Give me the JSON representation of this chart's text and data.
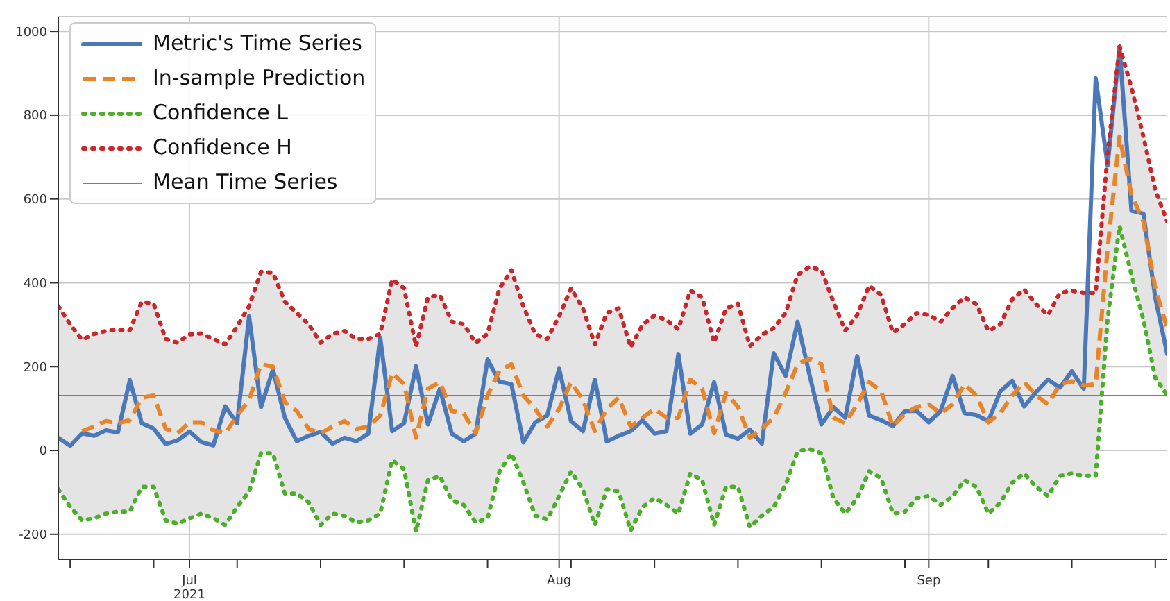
{
  "chart_data": {
    "type": "line",
    "x": [
      "2021-06-20",
      "2021-06-21",
      "2021-06-22",
      "2021-06-23",
      "2021-06-24",
      "2021-06-25",
      "2021-06-26",
      "2021-06-27",
      "2021-06-28",
      "2021-06-29",
      "2021-06-30",
      "2021-07-01",
      "2021-07-02",
      "2021-07-03",
      "2021-07-04",
      "2021-07-05",
      "2021-07-06",
      "2021-07-07",
      "2021-07-08",
      "2021-07-09",
      "2021-07-10",
      "2021-07-11",
      "2021-07-12",
      "2021-07-13",
      "2021-07-14",
      "2021-07-15",
      "2021-07-16",
      "2021-07-17",
      "2021-07-18",
      "2021-07-19",
      "2021-07-20",
      "2021-07-21",
      "2021-07-22",
      "2021-07-23",
      "2021-07-24",
      "2021-07-25",
      "2021-07-26",
      "2021-07-27",
      "2021-07-28",
      "2021-07-29",
      "2021-07-30",
      "2021-07-31",
      "2021-08-01",
      "2021-08-02",
      "2021-08-03",
      "2021-08-04",
      "2021-08-05",
      "2021-08-06",
      "2021-08-07",
      "2021-08-08",
      "2021-08-09",
      "2021-08-10",
      "2021-08-11",
      "2021-08-12",
      "2021-08-13",
      "2021-08-14",
      "2021-08-15",
      "2021-08-16",
      "2021-08-17",
      "2021-08-18",
      "2021-08-19",
      "2021-08-20",
      "2021-08-21",
      "2021-08-22",
      "2021-08-23",
      "2021-08-24",
      "2021-08-25",
      "2021-08-26",
      "2021-08-27",
      "2021-08-28",
      "2021-08-29",
      "2021-08-30",
      "2021-08-31",
      "2021-09-01",
      "2021-09-02",
      "2021-09-03",
      "2021-09-04",
      "2021-09-05",
      "2021-09-06",
      "2021-09-07",
      "2021-09-08",
      "2021-09-09",
      "2021-09-10",
      "2021-09-11",
      "2021-09-12",
      "2021-09-13",
      "2021-09-14",
      "2021-09-15",
      "2021-09-16",
      "2021-09-17",
      "2021-09-18",
      "2021-09-19",
      "2021-09-20",
      "2021-09-21"
    ],
    "series": [
      {
        "name": "Metric's Time Series",
        "color": "#4a78b8",
        "line_style": "solid",
        "values": [
          30,
          11,
          41,
          35,
          48,
          43,
          168,
          65,
          52,
          15,
          24,
          45,
          20,
          12,
          105,
          65,
          320,
          103,
          193,
          78,
          22,
          35,
          44,
          16,
          30,
          22,
          40,
          269,
          46,
          65,
          201,
          62,
          147,
          40,
          22,
          40,
          217,
          164,
          158,
          19,
          67,
          83,
          195,
          70,
          46,
          169,
          21,
          35,
          46,
          72,
          40,
          46,
          230,
          40,
          62,
          163,
          38,
          28,
          50,
          16,
          232,
          178,
          307,
          180,
          62,
          103,
          78,
          225,
          83,
          72,
          58,
          94,
          94,
          67,
          94,
          178,
          89,
          84,
          70,
          141,
          166,
          105,
          139,
          169,
          150,
          189,
          147,
          888,
          680,
          962,
          572,
          565,
          364,
          230
        ]
      },
      {
        "name": "In-sample Prediction",
        "color": "#e8842a",
        "line_style": "dashed",
        "lower": [
          -93,
          -135,
          -167,
          -162,
          -151,
          -146,
          -146,
          -87,
          -87,
          -167,
          -175,
          -162,
          -151,
          -162,
          -178,
          -135,
          -98,
          -7,
          -7,
          -103,
          -103,
          -124,
          -178,
          -151,
          -156,
          -172,
          -167,
          -151,
          -23,
          -45,
          -194,
          -71,
          -61,
          -119,
          -130,
          -172,
          -162,
          -50,
          -7,
          -76,
          -156,
          -165,
          -109,
          -50,
          -93,
          -178,
          -93,
          -98,
          -191,
          -135,
          -114,
          -130,
          -151,
          -55,
          -71,
          -178,
          -87,
          -87,
          -183,
          -156,
          -135,
          -82,
          -2,
          3,
          -7,
          -114,
          -151,
          -114,
          -50,
          -66,
          -151,
          -146,
          -114,
          -109,
          -130,
          -110,
          -71,
          -87,
          -151,
          -125,
          -77,
          -55,
          -87,
          -109,
          -61,
          -55,
          -61,
          -61,
          313,
          536,
          419,
          312,
          173,
          131
        ],
        "upper": [
          344,
          301,
          264,
          278,
          285,
          288,
          287,
          355,
          350,
          266,
          257,
          277,
          279,
          266,
          253,
          296,
          344,
          426,
          424,
          355,
          328,
          301,
          257,
          278,
          285,
          266,
          266,
          278,
          408,
          387,
          248,
          365,
          371,
          307,
          301,
          257,
          278,
          387,
          430,
          344,
          277,
          266,
          320,
          387,
          339,
          253,
          328,
          339,
          246,
          300,
          322,
          311,
          289,
          382,
          365,
          257,
          339,
          350,
          249,
          276,
          292,
          328,
          419,
          438,
          430,
          355,
          286,
          323,
          393,
          371,
          281,
          302,
          328,
          323,
          307,
          340,
          365,
          349,
          285,
          301,
          361,
          384,
          349,
          323,
          376,
          381,
          376,
          376,
          706,
          964,
          866,
          749,
          621,
          546
        ],
        "values": [
          null,
          null,
          46,
          57,
          70,
          65,
          72,
          126,
          131,
          52,
          41,
          67,
          67,
          48,
          41,
          83,
          120,
          206,
          200,
          115,
          94,
          51,
          41,
          57,
          70,
          51,
          57,
          83,
          185,
          158,
          30,
          147,
          163,
          94,
          88,
          41,
          131,
          190,
          206,
          131,
          99,
          57,
          99,
          163,
          120,
          46,
          99,
          126,
          57,
          78,
          99,
          78,
          78,
          169,
          147,
          41,
          137,
          104,
          30,
          52,
          78,
          137,
          206,
          219,
          206,
          78,
          65,
          110,
          163,
          142,
          57,
          88,
          104,
          110,
          88,
          110,
          158,
          131,
          67,
          89,
          131,
          163,
          131,
          110,
          158,
          165,
          155,
          158,
          482,
          749,
          610,
          546,
          387,
          291
        ]
      },
      {
        "name": "Confidence L",
        "color": "#4caf2a",
        "line_style": "dotted",
        "values": [
          -93,
          -135,
          -167,
          -162,
          -151,
          -146,
          -146,
          -87,
          -87,
          -167,
          -175,
          -162,
          -151,
          -162,
          -178,
          -135,
          -98,
          -7,
          -7,
          -103,
          -103,
          -124,
          -178,
          -151,
          -156,
          -172,
          -167,
          -151,
          -23,
          -45,
          -194,
          -71,
          -61,
          -119,
          -130,
          -172,
          -162,
          -50,
          -7,
          -76,
          -156,
          -165,
          -109,
          -50,
          -93,
          -178,
          -93,
          -98,
          -191,
          -135,
          -114,
          -130,
          -151,
          -55,
          -71,
          -178,
          -87,
          -87,
          -183,
          -156,
          -135,
          -82,
          -2,
          3,
          -7,
          -114,
          -151,
          -114,
          -50,
          -66,
          -151,
          -146,
          -114,
          -109,
          -130,
          -110,
          -71,
          -87,
          -151,
          -125,
          -77,
          -55,
          -87,
          -109,
          -61,
          -55,
          -61,
          -61,
          313,
          536,
          419,
          312,
          173,
          131
        ]
      },
      {
        "name": "Confidence H",
        "color": "#c8282c",
        "line_style": "dotted",
        "values": [
          344,
          301,
          264,
          278,
          285,
          288,
          287,
          355,
          350,
          266,
          257,
          277,
          279,
          266,
          253,
          296,
          344,
          426,
          424,
          355,
          328,
          301,
          257,
          278,
          285,
          266,
          266,
          278,
          408,
          387,
          248,
          365,
          371,
          307,
          301,
          257,
          278,
          387,
          430,
          344,
          277,
          266,
          320,
          387,
          339,
          253,
          328,
          339,
          246,
          300,
          322,
          311,
          289,
          382,
          365,
          257,
          339,
          350,
          249,
          276,
          292,
          328,
          419,
          438,
          430,
          355,
          286,
          323,
          393,
          371,
          281,
          302,
          328,
          323,
          307,
          340,
          365,
          349,
          285,
          301,
          361,
          384,
          349,
          323,
          376,
          381,
          376,
          376,
          706,
          964,
          866,
          749,
          621,
          546
        ]
      }
    ],
    "ref_lines": [
      {
        "axis": "y",
        "value": 131,
        "label": "Mean Time Series",
        "color": "#9467bd",
        "line_style": "solid"
      }
    ],
    "xlim": [
      "2021-06-20",
      "2021-09-21"
    ],
    "xticks": [
      {
        "value": "2021-06-21",
        "label": null
      },
      {
        "value": "2021-06-28",
        "label": null
      },
      {
        "value": "2021-07-01",
        "label": "Jul\n2021"
      },
      {
        "value": "2021-07-05",
        "label": null
      },
      {
        "value": "2021-07-12",
        "label": null
      },
      {
        "value": "2021-07-19",
        "label": null
      },
      {
        "value": "2021-07-26",
        "label": null
      },
      {
        "value": "2021-08-01",
        "label": "Aug"
      },
      {
        "value": "2021-08-02",
        "label": null
      },
      {
        "value": "2021-08-09",
        "label": null
      },
      {
        "value": "2021-08-16",
        "label": null
      },
      {
        "value": "2021-08-23",
        "label": null
      },
      {
        "value": "2021-08-30",
        "label": null
      },
      {
        "value": "2021-09-01",
        "label": "Sep"
      },
      {
        "value": "2021-09-06",
        "label": null
      },
      {
        "value": "2021-09-13",
        "label": null
      },
      {
        "value": "2021-09-20",
        "label": null
      }
    ],
    "ylim": [
      -260,
      1035
    ],
    "yticks": [
      -200,
      0,
      200,
      400,
      600,
      800,
      1000
    ],
    "grid": true,
    "legend": "top left",
    "marker": "none"
  }
}
